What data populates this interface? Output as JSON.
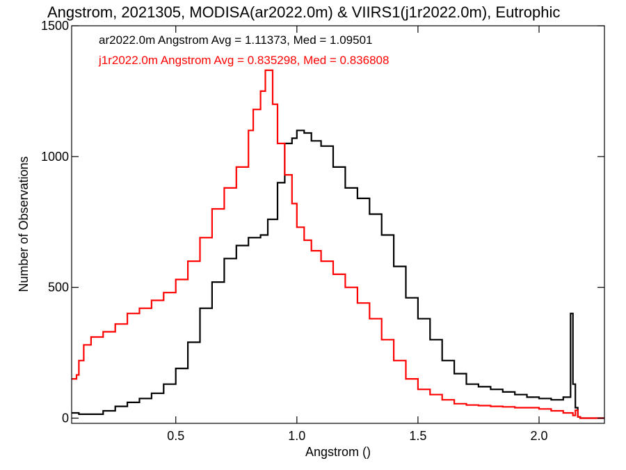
{
  "chart_data": {
    "type": "line",
    "title": "Angstrom, 2021305, MODISA(ar2022.0m) & VIIRS1(j1r2022.0m), Eutrophic",
    "xlabel": "Angstrom ()",
    "ylabel": "Number of Observations",
    "xlim": [
      0.07,
      2.27
    ],
    "ylim": [
      -20,
      1500
    ],
    "x_ticks": [
      0.5,
      1.0,
      1.5,
      2.0
    ],
    "x_tick_labels": [
      "0.5",
      "1.0",
      "1.5",
      "2.0"
    ],
    "y_ticks": [
      0,
      500,
      1000,
      1500
    ],
    "y_tick_labels": [
      "0",
      "500",
      "1000",
      "1500"
    ],
    "grid": false,
    "step": true,
    "annotations": [
      {
        "text": "ar2022.0m Angstrom Avg = 1.11373, Med = 1.09501",
        "color": "#000000"
      },
      {
        "text": "j1r2022.0m Angstrom Avg = 0.835298, Med = 0.836808",
        "color": "#ff0000"
      }
    ],
    "series": [
      {
        "color": "#000000",
        "x": [
          0.07,
          0.1,
          0.15,
          0.2,
          0.25,
          0.3,
          0.35,
          0.4,
          0.45,
          0.5,
          0.55,
          0.6,
          0.65,
          0.7,
          0.75,
          0.8,
          0.85,
          0.88,
          0.92,
          0.95,
          0.98,
          1.0,
          1.03,
          1.06,
          1.1,
          1.15,
          1.2,
          1.25,
          1.3,
          1.35,
          1.4,
          1.45,
          1.5,
          1.55,
          1.6,
          1.65,
          1.7,
          1.75,
          1.8,
          1.85,
          1.9,
          1.95,
          2.0,
          2.05,
          2.1,
          2.13,
          2.14,
          2.15,
          2.16,
          2.17,
          2.2,
          2.27
        ],
        "y": [
          20,
          15,
          15,
          28,
          45,
          60,
          75,
          95,
          130,
          190,
          290,
          420,
          520,
          610,
          660,
          690,
          700,
          760,
          900,
          1050,
          1070,
          1100,
          1090,
          1060,
          1040,
          960,
          880,
          840,
          780,
          700,
          580,
          460,
          380,
          300,
          220,
          170,
          130,
          120,
          110,
          100,
          90,
          80,
          75,
          70,
          80,
          400,
          130,
          40,
          5,
          0,
          0,
          0
        ]
      },
      {
        "color": "#ff0000",
        "x": [
          0.07,
          0.09,
          0.1,
          0.12,
          0.15,
          0.2,
          0.25,
          0.3,
          0.35,
          0.4,
          0.45,
          0.5,
          0.55,
          0.6,
          0.65,
          0.7,
          0.75,
          0.8,
          0.82,
          0.85,
          0.87,
          0.9,
          0.92,
          0.95,
          0.98,
          1.0,
          1.03,
          1.06,
          1.1,
          1.15,
          1.2,
          1.25,
          1.3,
          1.35,
          1.4,
          1.45,
          1.5,
          1.55,
          1.6,
          1.65,
          1.7,
          1.75,
          1.8,
          1.85,
          1.9,
          1.95,
          2.0,
          2.05,
          2.1,
          2.14,
          2.15,
          2.16,
          2.17,
          2.2,
          2.27
        ],
        "y": [
          150,
          165,
          220,
          280,
          310,
          330,
          360,
          400,
          420,
          450,
          480,
          530,
          600,
          690,
          800,
          880,
          960,
          1100,
          1180,
          1250,
          1330,
          1200,
          1050,
          930,
          820,
          730,
          680,
          640,
          600,
          550,
          500,
          440,
          380,
          300,
          220,
          150,
          110,
          90,
          70,
          55,
          50,
          48,
          45,
          43,
          40,
          40,
          35,
          28,
          20,
          10,
          30,
          5,
          0,
          0,
          0
        ]
      }
    ]
  }
}
